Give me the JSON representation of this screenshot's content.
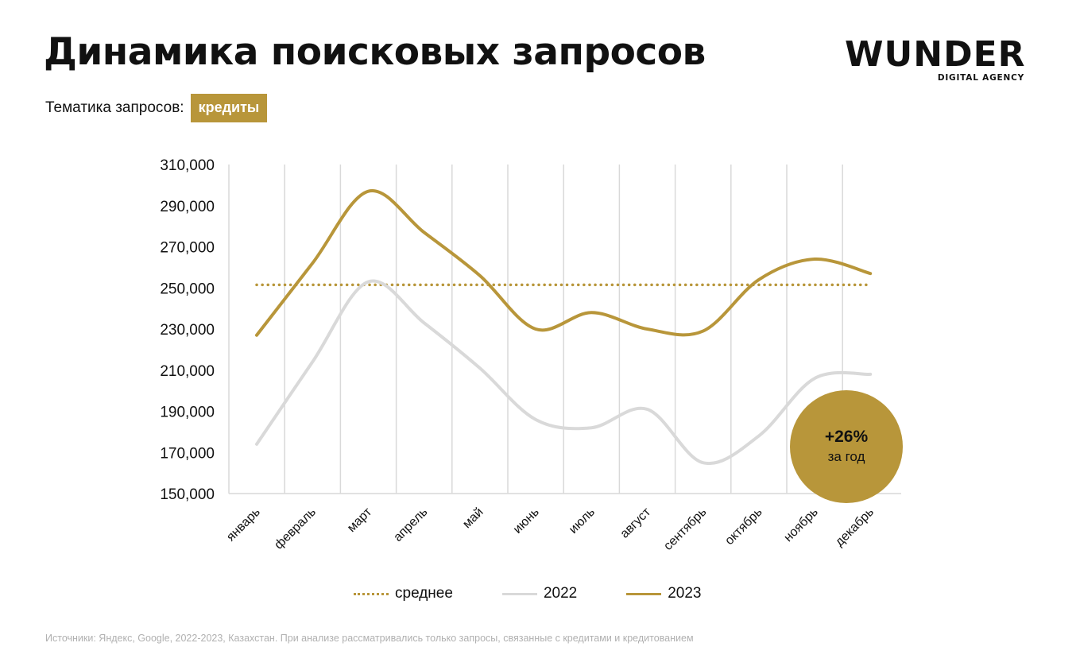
{
  "header": {
    "title": "Динамика поисковых запросов",
    "topic_label": "Тематика запросов:",
    "topic_value": "кредиты"
  },
  "logo": {
    "word": "WUNDER",
    "subtitle": "DIGITAL AGENCY"
  },
  "badge": {
    "value": "+26%",
    "sub": "за год"
  },
  "footnote": "Источники: Яндекс, Google, 2022-2023, Казахстан. При анализе рассматривались только запросы, связанные с кредитами и кредитованием",
  "colors": {
    "accent": "#b8963a",
    "series_2022": "#d9d9d9",
    "grid": "#d9d9d9",
    "text": "#111111"
  },
  "chart_data": {
    "type": "line",
    "categories": [
      "январь",
      "февраль",
      "март",
      "апрель",
      "май",
      "июнь",
      "июль",
      "август",
      "сентябрь",
      "октябрь",
      "ноябрь",
      "декабрь"
    ],
    "ylim": [
      150000,
      310000
    ],
    "yticks": [
      "310,000",
      "290,000",
      "270,000",
      "250,000",
      "230,000",
      "210,000",
      "190,000",
      "170,000",
      "150,000"
    ],
    "ytick_values": [
      310000,
      290000,
      270000,
      250000,
      230000,
      210000,
      190000,
      170000,
      150000
    ],
    "grid": "vertical",
    "smooth": true,
    "legend_position": "bottom",
    "series": [
      {
        "name": "среднее",
        "style": "dotted",
        "color": "#b8963a",
        "values": [
          251500,
          251500,
          251500,
          251500,
          251500,
          251500,
          251500,
          251500,
          251500,
          251500,
          251500,
          251500
        ]
      },
      {
        "name": "2022",
        "style": "solid",
        "color": "#d9d9d9",
        "values": [
          174000,
          214000,
          253000,
          233000,
          211000,
          186000,
          182000,
          191000,
          165000,
          178000,
          206000,
          208000
        ]
      },
      {
        "name": "2023",
        "style": "solid",
        "color": "#b8963a",
        "values": [
          227000,
          262000,
          297000,
          277000,
          256000,
          230000,
          238000,
          230000,
          229000,
          254000,
          264000,
          257000
        ]
      }
    ]
  }
}
